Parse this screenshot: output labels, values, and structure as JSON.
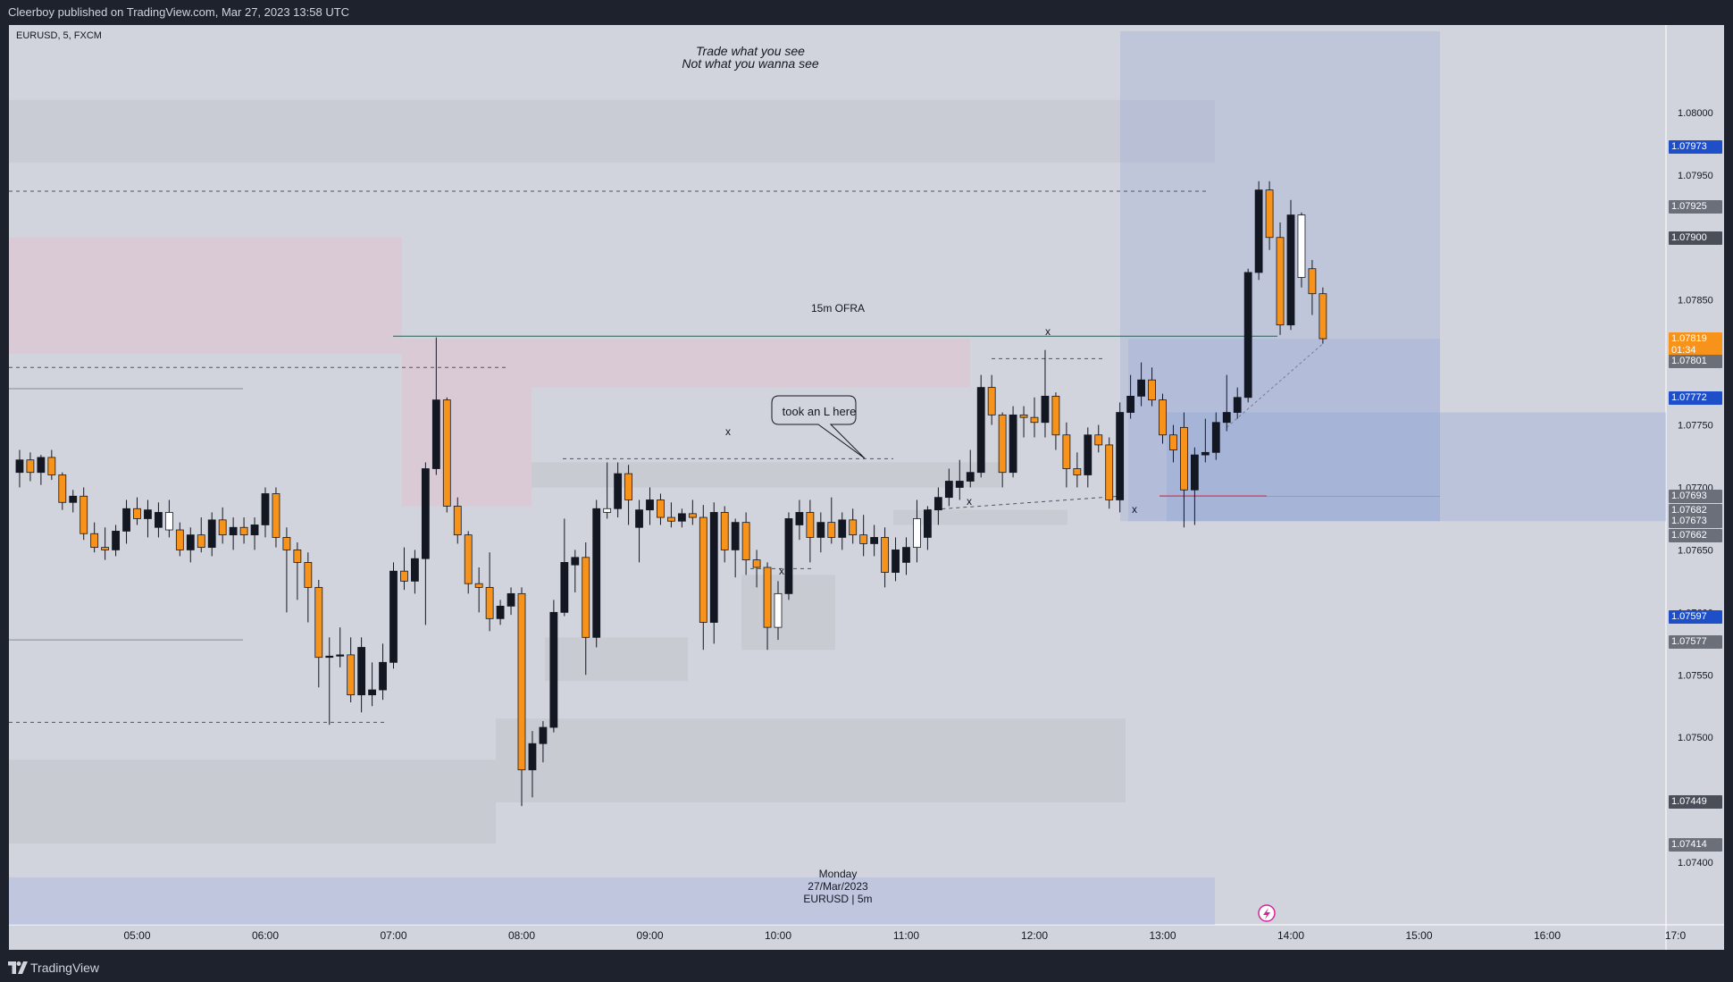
{
  "header": {
    "published": "Cleerboy published on TradingView.com, Mar 27, 2023 13:58 UTC"
  },
  "symbol_bar": {
    "label": "EURUSD, 5, FXCM"
  },
  "footer": {
    "brand": "TradingView"
  },
  "annotations": {
    "motto_line1": "Trade what you see",
    "motto_line2": "Not what you wanna see",
    "ofra": "15m OFRA",
    "callout": "took an L here",
    "x_mark": "x",
    "date_line1": "Monday",
    "date_line2": "27/Mar/2023",
    "date_line3": "EURUSD | 5m"
  },
  "colors": {
    "bull": "#131722",
    "bear": "#f7931a",
    "hollow": "#ffffff",
    "blue_label": "#1e4fc8",
    "gray_label": "#6b6f7a",
    "dark_label": "#4a4e58",
    "last_price": "#f7931a"
  },
  "price_labels": [
    {
      "value": "1.07973",
      "kind": "blue"
    },
    {
      "value": "1.07925",
      "kind": "gray"
    },
    {
      "value": "1.07900",
      "kind": "dark"
    },
    {
      "value": "1.07819",
      "kind": "last",
      "sub": "01:34"
    },
    {
      "value": "1.07801",
      "kind": "gray"
    },
    {
      "value": "1.07772",
      "kind": "blue"
    },
    {
      "value": "1.07693",
      "kind": "gray"
    },
    {
      "value": "1.07682",
      "kind": "gray"
    },
    {
      "value": "1.07673",
      "kind": "gray"
    },
    {
      "value": "1.07662",
      "kind": "gray"
    },
    {
      "value": "1.07597",
      "kind": "blue"
    },
    {
      "value": "1.07577",
      "kind": "gray"
    },
    {
      "value": "1.07449",
      "kind": "dark"
    },
    {
      "value": "1.07414",
      "kind": "gray"
    }
  ],
  "chart_data": {
    "type": "candlestick",
    "symbol": "EURUSD",
    "interval": "5",
    "source": "FXCM",
    "ylim": [
      1.0735,
      1.0807
    ],
    "y_ticks": [
      "1.07400",
      "1.07450",
      "1.07500",
      "1.07550",
      "1.07600",
      "1.07650",
      "1.07700",
      "1.07750",
      "1.07800",
      "1.07850",
      "1.07900",
      "1.07950",
      "1.08000"
    ],
    "x_ticks": [
      "05:00",
      "06:00",
      "07:00",
      "08:00",
      "09:00",
      "10:00",
      "11:00",
      "12:00",
      "13:00",
      "14:00",
      "15:00",
      "16:00",
      "17:0"
    ],
    "candles": [
      {
        "t": "04:05",
        "o": 1.07712,
        "h": 1.0773,
        "l": 1.077,
        "c": 1.07722
      },
      {
        "t": "04:10",
        "o": 1.07722,
        "h": 1.07728,
        "l": 1.07705,
        "c": 1.07712
      },
      {
        "t": "04:15",
        "o": 1.07712,
        "h": 1.07726,
        "l": 1.07702,
        "c": 1.07724
      },
      {
        "t": "04:20",
        "o": 1.07724,
        "h": 1.0773,
        "l": 1.07706,
        "c": 1.0771
      },
      {
        "t": "04:25",
        "o": 1.0771,
        "h": 1.07712,
        "l": 1.07682,
        "c": 1.07688
      },
      {
        "t": "04:30",
        "o": 1.07688,
        "h": 1.07698,
        "l": 1.0768,
        "c": 1.07693
      },
      {
        "t": "04:35",
        "o": 1.07693,
        "h": 1.077,
        "l": 1.07658,
        "c": 1.07663
      },
      {
        "t": "04:40",
        "o": 1.07663,
        "h": 1.07672,
        "l": 1.07648,
        "c": 1.07652
      },
      {
        "t": "04:45",
        "o": 1.07652,
        "h": 1.07668,
        "l": 1.07642,
        "c": 1.0765
      },
      {
        "t": "04:50",
        "o": 1.0765,
        "h": 1.0767,
        "l": 1.07645,
        "c": 1.07665
      },
      {
        "t": "04:55",
        "o": 1.07665,
        "h": 1.0769,
        "l": 1.07655,
        "c": 1.07683
      },
      {
        "t": "05:00",
        "o": 1.07683,
        "h": 1.07692,
        "l": 1.0767,
        "c": 1.07675
      },
      {
        "t": "05:05",
        "o": 1.07675,
        "h": 1.0769,
        "l": 1.0766,
        "c": 1.07682
      },
      {
        "t": "05:10",
        "o": 1.07668,
        "h": 1.07688,
        "l": 1.0766,
        "c": 1.0768
      },
      {
        "t": "05:15",
        "o": 1.0768,
        "h": 1.0769,
        "l": 1.0766,
        "c": 1.07666
      },
      {
        "t": "05:20",
        "o": 1.07666,
        "h": 1.07672,
        "l": 1.07645,
        "c": 1.0765
      },
      {
        "t": "05:25",
        "o": 1.0765,
        "h": 1.07668,
        "l": 1.0764,
        "c": 1.07662
      },
      {
        "t": "05:30",
        "o": 1.07662,
        "h": 1.07676,
        "l": 1.07648,
        "c": 1.07652
      },
      {
        "t": "05:35",
        "o": 1.07652,
        "h": 1.0768,
        "l": 1.07645,
        "c": 1.07674
      },
      {
        "t": "05:40",
        "o": 1.07674,
        "h": 1.07684,
        "l": 1.07655,
        "c": 1.07662
      },
      {
        "t": "05:45",
        "o": 1.07662,
        "h": 1.07676,
        "l": 1.0765,
        "c": 1.07668
      },
      {
        "t": "05:50",
        "o": 1.07668,
        "h": 1.07676,
        "l": 1.07655,
        "c": 1.07662
      },
      {
        "t": "05:55",
        "o": 1.07662,
        "h": 1.07676,
        "l": 1.0765,
        "c": 1.0767
      },
      {
        "t": "06:00",
        "o": 1.0767,
        "h": 1.077,
        "l": 1.0766,
        "c": 1.07695
      },
      {
        "t": "06:05",
        "o": 1.07695,
        "h": 1.077,
        "l": 1.07652,
        "c": 1.0766
      },
      {
        "t": "06:10",
        "o": 1.0766,
        "h": 1.07668,
        "l": 1.076,
        "c": 1.0765
      },
      {
        "t": "06:15",
        "o": 1.0765,
        "h": 1.07656,
        "l": 1.0761,
        "c": 1.0764
      },
      {
        "t": "06:20",
        "o": 1.0764,
        "h": 1.07648,
        "l": 1.07592,
        "c": 1.0762
      },
      {
        "t": "06:25",
        "o": 1.0762,
        "h": 1.07626,
        "l": 1.0754,
        "c": 1.07564
      },
      {
        "t": "06:30",
        "o": 1.07564,
        "h": 1.0758,
        "l": 1.0751,
        "c": 1.07565
      },
      {
        "t": "06:35",
        "o": 1.07565,
        "h": 1.07588,
        "l": 1.07556,
        "c": 1.07566
      },
      {
        "t": "06:40",
        "o": 1.07566,
        "h": 1.0758,
        "l": 1.07528,
        "c": 1.07534
      },
      {
        "t": "06:45",
        "o": 1.07534,
        "h": 1.0758,
        "l": 1.0752,
        "c": 1.07572
      },
      {
        "t": "06:50",
        "o": 1.07534,
        "h": 1.0756,
        "l": 1.07525,
        "c": 1.07538
      },
      {
        "t": "06:55",
        "o": 1.07538,
        "h": 1.07575,
        "l": 1.0753,
        "c": 1.0756
      },
      {
        "t": "07:00",
        "o": 1.0756,
        "h": 1.0764,
        "l": 1.07555,
        "c": 1.07633
      },
      {
        "t": "07:05",
        "o": 1.07633,
        "h": 1.07652,
        "l": 1.07618,
        "c": 1.07625
      },
      {
        "t": "07:10",
        "o": 1.07625,
        "h": 1.0765,
        "l": 1.07615,
        "c": 1.07643
      },
      {
        "t": "07:15",
        "o": 1.07643,
        "h": 1.0772,
        "l": 1.0759,
        "c": 1.07715
      },
      {
        "t": "07:20",
        "o": 1.07715,
        "h": 1.0782,
        "l": 1.0771,
        "c": 1.0777
      },
      {
        "t": "07:25",
        "o": 1.0777,
        "h": 1.07772,
        "l": 1.0768,
        "c": 1.07685
      },
      {
        "t": "07:30",
        "o": 1.07685,
        "h": 1.07692,
        "l": 1.07655,
        "c": 1.07662
      },
      {
        "t": "07:35",
        "o": 1.07662,
        "h": 1.07665,
        "l": 1.07615,
        "c": 1.07623
      },
      {
        "t": "07:40",
        "o": 1.07623,
        "h": 1.07636,
        "l": 1.076,
        "c": 1.0762
      },
      {
        "t": "07:45",
        "o": 1.0762,
        "h": 1.07648,
        "l": 1.07585,
        "c": 1.07595
      },
      {
        "t": "07:50",
        "o": 1.07595,
        "h": 1.0761,
        "l": 1.0759,
        "c": 1.07605
      },
      {
        "t": "07:55",
        "o": 1.07605,
        "h": 1.0762,
        "l": 1.07598,
        "c": 1.07615
      },
      {
        "t": "08:00",
        "o": 1.07615,
        "h": 1.0762,
        "l": 1.07445,
        "c": 1.07474
      },
      {
        "t": "08:05",
        "o": 1.07474,
        "h": 1.07505,
        "l": 1.07452,
        "c": 1.07495
      },
      {
        "t": "08:10",
        "o": 1.07495,
        "h": 1.07513,
        "l": 1.0748,
        "c": 1.07508
      },
      {
        "t": "08:15",
        "o": 1.07508,
        "h": 1.0761,
        "l": 1.07504,
        "c": 1.076
      },
      {
        "t": "08:20",
        "o": 1.076,
        "h": 1.07675,
        "l": 1.07597,
        "c": 1.0764
      },
      {
        "t": "08:25",
        "o": 1.07638,
        "h": 1.0765,
        "l": 1.07616,
        "c": 1.07644
      },
      {
        "t": "08:30",
        "o": 1.07644,
        "h": 1.07656,
        "l": 1.0755,
        "c": 1.0758
      },
      {
        "t": "08:35",
        "o": 1.0758,
        "h": 1.0769,
        "l": 1.07572,
        "c": 1.07683
      },
      {
        "t": "08:40",
        "o": 1.0768,
        "h": 1.0772,
        "l": 1.07675,
        "c": 1.07683
      },
      {
        "t": "08:45",
        "o": 1.07683,
        "h": 1.0772,
        "l": 1.07676,
        "c": 1.07711
      },
      {
        "t": "08:50",
        "o": 1.07711,
        "h": 1.07718,
        "l": 1.0767,
        "c": 1.0769
      },
      {
        "t": "08:55",
        "o": 1.07668,
        "h": 1.0769,
        "l": 1.0764,
        "c": 1.07682
      },
      {
        "t": "09:00",
        "o": 1.07682,
        "h": 1.077,
        "l": 1.0767,
        "c": 1.0769
      },
      {
        "t": "09:05",
        "o": 1.0769,
        "h": 1.07695,
        "l": 1.0767,
        "c": 1.07676
      },
      {
        "t": "09:10",
        "o": 1.07676,
        "h": 1.07688,
        "l": 1.07668,
        "c": 1.07673
      },
      {
        "t": "09:15",
        "o": 1.07673,
        "h": 1.07683,
        "l": 1.07668,
        "c": 1.07679
      },
      {
        "t": "09:20",
        "o": 1.07679,
        "h": 1.0769,
        "l": 1.0767,
        "c": 1.07676
      },
      {
        "t": "09:25",
        "o": 1.07676,
        "h": 1.07686,
        "l": 1.0757,
        "c": 1.07592
      },
      {
        "t": "09:30",
        "o": 1.07592,
        "h": 1.07688,
        "l": 1.07575,
        "c": 1.0768
      },
      {
        "t": "09:35",
        "o": 1.0768,
        "h": 1.07685,
        "l": 1.0764,
        "c": 1.0765
      },
      {
        "t": "09:40",
        "o": 1.0765,
        "h": 1.07675,
        "l": 1.07628,
        "c": 1.07672
      },
      {
        "t": "09:45",
        "o": 1.07672,
        "h": 1.0768,
        "l": 1.0763,
        "c": 1.07642
      },
      {
        "t": "09:50",
        "o": 1.07642,
        "h": 1.0765,
        "l": 1.0762,
        "c": 1.07636
      },
      {
        "t": "09:55",
        "o": 1.07636,
        "h": 1.0764,
        "l": 1.0757,
        "c": 1.07588
      },
      {
        "t": "10:00",
        "o": 1.07588,
        "h": 1.07625,
        "l": 1.07578,
        "c": 1.07615
      },
      {
        "t": "10:05",
        "o": 1.07615,
        "h": 1.0768,
        "l": 1.0761,
        "c": 1.07675
      },
      {
        "t": "10:10",
        "o": 1.0767,
        "h": 1.0769,
        "l": 1.07658,
        "c": 1.0768
      },
      {
        "t": "10:15",
        "o": 1.0768,
        "h": 1.0769,
        "l": 1.0764,
        "c": 1.0766
      },
      {
        "t": "10:20",
        "o": 1.0766,
        "h": 1.0768,
        "l": 1.07648,
        "c": 1.07672
      },
      {
        "t": "10:25",
        "o": 1.07672,
        "h": 1.07692,
        "l": 1.07655,
        "c": 1.0766
      },
      {
        "t": "10:30",
        "o": 1.0766,
        "h": 1.0768,
        "l": 1.0765,
        "c": 1.07674
      },
      {
        "t": "10:35",
        "o": 1.07674,
        "h": 1.07683,
        "l": 1.07655,
        "c": 1.07662
      },
      {
        "t": "10:40",
        "o": 1.07662,
        "h": 1.07678,
        "l": 1.07645,
        "c": 1.07655
      },
      {
        "t": "10:45",
        "o": 1.07655,
        "h": 1.0767,
        "l": 1.07645,
        "c": 1.0766
      },
      {
        "t": "10:50",
        "o": 1.0766,
        "h": 1.07668,
        "l": 1.0762,
        "c": 1.07632
      },
      {
        "t": "10:55",
        "o": 1.07632,
        "h": 1.0766,
        "l": 1.07625,
        "c": 1.0765
      },
      {
        "t": "11:00",
        "o": 1.0764,
        "h": 1.0766,
        "l": 1.0763,
        "c": 1.07652
      },
      {
        "t": "11:05",
        "o": 1.07652,
        "h": 1.0769,
        "l": 1.0764,
        "c": 1.07675
      },
      {
        "t": "11:10",
        "o": 1.0766,
        "h": 1.07685,
        "l": 1.0765,
        "c": 1.07682
      },
      {
        "t": "11:15",
        "o": 1.07682,
        "h": 1.077,
        "l": 1.0767,
        "c": 1.07692
      },
      {
        "t": "11:20",
        "o": 1.07692,
        "h": 1.07715,
        "l": 1.07685,
        "c": 1.07705
      },
      {
        "t": "11:25",
        "o": 1.077,
        "h": 1.07722,
        "l": 1.0769,
        "c": 1.07705
      },
      {
        "t": "11:30",
        "o": 1.07705,
        "h": 1.0773,
        "l": 1.077,
        "c": 1.07712
      },
      {
        "t": "11:35",
        "o": 1.07712,
        "h": 1.0779,
        "l": 1.07708,
        "c": 1.0778
      },
      {
        "t": "11:40",
        "o": 1.0778,
        "h": 1.0779,
        "l": 1.0775,
        "c": 1.07758
      },
      {
        "t": "11:45",
        "o": 1.07758,
        "h": 1.0776,
        "l": 1.077,
        "c": 1.07712
      },
      {
        "t": "11:50",
        "o": 1.07712,
        "h": 1.07765,
        "l": 1.07708,
        "c": 1.07758
      },
      {
        "t": "11:55",
        "o": 1.07758,
        "h": 1.07765,
        "l": 1.0774,
        "c": 1.07756
      },
      {
        "t": "12:00",
        "o": 1.07756,
        "h": 1.07772,
        "l": 1.0774,
        "c": 1.07752
      },
      {
        "t": "12:05",
        "o": 1.07752,
        "h": 1.0781,
        "l": 1.0774,
        "c": 1.07773
      },
      {
        "t": "12:10",
        "o": 1.07773,
        "h": 1.07776,
        "l": 1.0773,
        "c": 1.07742
      },
      {
        "t": "12:15",
        "o": 1.07742,
        "h": 1.07752,
        "l": 1.077,
        "c": 1.07715
      },
      {
        "t": "12:20",
        "o": 1.07715,
        "h": 1.07728,
        "l": 1.077,
        "c": 1.0771
      },
      {
        "t": "12:25",
        "o": 1.0771,
        "h": 1.07748,
        "l": 1.077,
        "c": 1.07742
      },
      {
        "t": "12:30",
        "o": 1.07742,
        "h": 1.0775,
        "l": 1.07728,
        "c": 1.07734
      },
      {
        "t": "12:35",
        "o": 1.07734,
        "h": 1.0774,
        "l": 1.07683,
        "c": 1.0769
      },
      {
        "t": "12:40",
        "o": 1.0769,
        "h": 1.07768,
        "l": 1.0768,
        "c": 1.0776
      },
      {
        "t": "12:45",
        "o": 1.0776,
        "h": 1.0779,
        "l": 1.07755,
        "c": 1.07773
      },
      {
        "t": "12:50",
        "o": 1.07773,
        "h": 1.078,
        "l": 1.07765,
        "c": 1.07786
      },
      {
        "t": "12:55",
        "o": 1.07786,
        "h": 1.07796,
        "l": 1.07765,
        "c": 1.0777
      },
      {
        "t": "13:00",
        "o": 1.0777,
        "h": 1.07775,
        "l": 1.07735,
        "c": 1.07742
      },
      {
        "t": "13:05",
        "o": 1.07742,
        "h": 1.0775,
        "l": 1.0772,
        "c": 1.0773
      },
      {
        "t": "13:10",
        "o": 1.07748,
        "h": 1.0776,
        "l": 1.07668,
        "c": 1.07698
      },
      {
        "t": "13:15",
        "o": 1.07698,
        "h": 1.07732,
        "l": 1.0767,
        "c": 1.07726
      },
      {
        "t": "13:20",
        "o": 1.07726,
        "h": 1.07755,
        "l": 1.0772,
        "c": 1.07728
      },
      {
        "t": "13:25",
        "o": 1.07728,
        "h": 1.0776,
        "l": 1.07722,
        "c": 1.07752
      },
      {
        "t": "13:30",
        "o": 1.07752,
        "h": 1.0779,
        "l": 1.07745,
        "c": 1.0776
      },
      {
        "t": "13:35",
        "o": 1.0776,
        "h": 1.0778,
        "l": 1.07755,
        "c": 1.07772
      },
      {
        "t": "13:40",
        "o": 1.07772,
        "h": 1.07875,
        "l": 1.07768,
        "c": 1.07872
      },
      {
        "t": "13:45",
        "o": 1.07872,
        "h": 1.07945,
        "l": 1.07866,
        "c": 1.07938
      },
      {
        "t": "13:50",
        "o": 1.07938,
        "h": 1.07945,
        "l": 1.0789,
        "c": 1.079
      },
      {
        "t": "13:55",
        "o": 1.079,
        "h": 1.07912,
        "l": 1.07822,
        "c": 1.0783
      },
      {
        "t": "14:00",
        "o": 1.0783,
        "h": 1.0793,
        "l": 1.07826,
        "c": 1.07918
      },
      {
        "t": "14:05",
        "o": 1.07868,
        "h": 1.0792,
        "l": 1.0786,
        "c": 1.07918
      },
      {
        "t": "14:10",
        "o": 1.07875,
        "h": 1.07882,
        "l": 1.07838,
        "c": 1.07855
      },
      {
        "t": "14:15",
        "o": 1.07855,
        "h": 1.0786,
        "l": 1.07815,
        "c": 1.07819
      }
    ]
  }
}
